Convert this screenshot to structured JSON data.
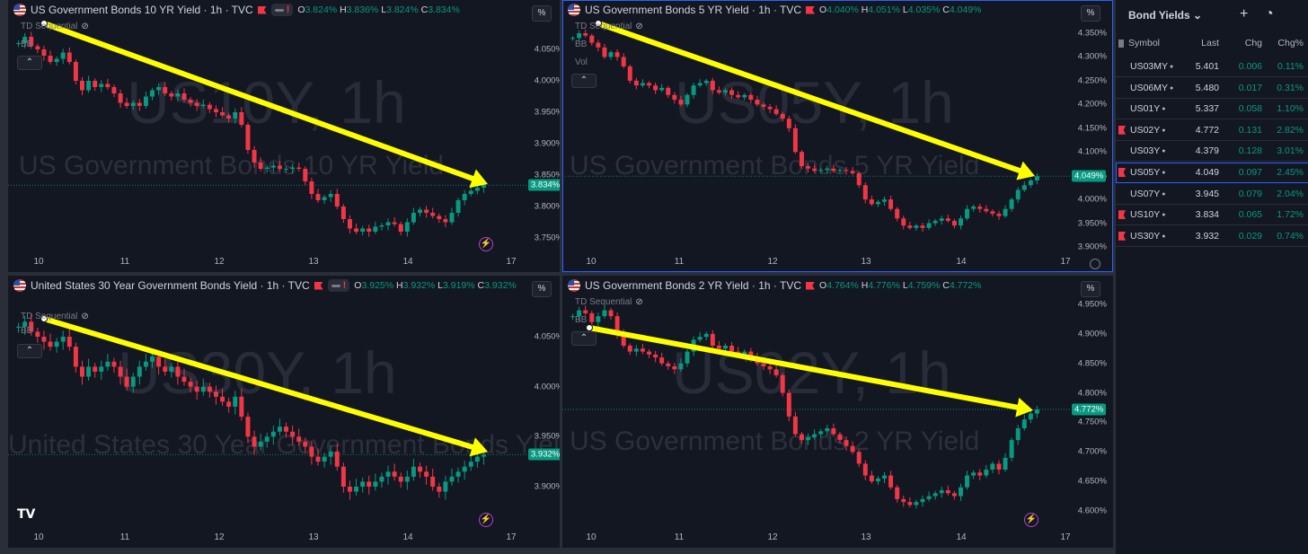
{
  "panes": [
    {
      "id": "p10",
      "title": "US Government Bonds 10 YR Yield · 1h · TVC",
      "has_pill": true,
      "ohlc": {
        "o": "3.824%",
        "h": "3.836%",
        "l": "3.824%",
        "c": "3.834%"
      },
      "indicators": [
        "TD Sequential",
        "BB"
      ],
      "wm_big": "US10Y, 1h",
      "wm_small": "US Government Bonds 10 YR Yield",
      "y_ticks": [
        "4.050%",
        "4.000%",
        "3.950%",
        "3.900%",
        "3.850%",
        "3.800%",
        "3.750%"
      ],
      "y_values": [
        4.05,
        4.0,
        3.95,
        3.9,
        3.85,
        3.8,
        3.75
      ],
      "last_value": "3.834%",
      "last": 3.834,
      "x_ticks": [
        "10",
        "11",
        "12",
        "13",
        "14",
        "17"
      ],
      "series": [
        4.06,
        4.07,
        4.055,
        4.05,
        4.04,
        4.03,
        4.035,
        4.045,
        4.03,
        4.0,
        3.985,
        4.0,
        3.99,
        3.995,
        3.99,
        3.98,
        3.965,
        3.96,
        3.965,
        3.96,
        3.975,
        3.985,
        3.99,
        3.98,
        3.975,
        3.98,
        3.97,
        3.965,
        3.96,
        3.962,
        3.955,
        3.95,
        3.945,
        3.94,
        3.95,
        3.93,
        3.89,
        3.87,
        3.86,
        3.862,
        3.865,
        3.86,
        3.86,
        3.862,
        3.86,
        3.84,
        3.82,
        3.81,
        3.815,
        3.82,
        3.8,
        3.78,
        3.765,
        3.76,
        3.765,
        3.76,
        3.768,
        3.77,
        3.775,
        3.772,
        3.76,
        3.775,
        3.79,
        3.795,
        3.79,
        3.785,
        3.78,
        3.775,
        3.79,
        3.81,
        3.82,
        3.825,
        3.83,
        3.834
      ]
    },
    {
      "id": "p05",
      "title": "US Government Bonds 5 YR Yield · 1h · TVC",
      "has_pill": false,
      "ohlc": {
        "o": "4.040%",
        "h": "4.051%",
        "l": "4.035%",
        "c": "4.049%"
      },
      "indicators": [
        "TD Sequential",
        "BB",
        "Vol"
      ],
      "wm_big": "US05Y, 1h",
      "wm_small": "US Government Bonds 5 YR Yield",
      "y_ticks": [
        "4.350%",
        "4.300%",
        "4.250%",
        "4.200%",
        "4.150%",
        "4.100%",
        "4.050%",
        "4.000%",
        "3.950%",
        "3.900%"
      ],
      "y_values": [
        4.35,
        4.3,
        4.25,
        4.2,
        4.15,
        4.1,
        4.05,
        4.0,
        3.95,
        3.9
      ],
      "last_value": "4.049%",
      "last": 4.049,
      "x_ticks": [
        "10",
        "11",
        "12",
        "13",
        "14",
        "17"
      ],
      "series": [
        4.34,
        4.35,
        4.345,
        4.33,
        4.32,
        4.3,
        4.31,
        4.3,
        4.28,
        4.25,
        4.24,
        4.245,
        4.24,
        4.23,
        4.235,
        4.22,
        4.21,
        4.2,
        4.22,
        4.24,
        4.245,
        4.25,
        4.23,
        4.225,
        4.23,
        4.22,
        4.215,
        4.22,
        4.21,
        4.2,
        4.195,
        4.19,
        4.18,
        4.17,
        4.15,
        4.1,
        4.07,
        4.065,
        4.06,
        4.062,
        4.065,
        4.06,
        4.062,
        4.06,
        4.055,
        4.03,
        4.0,
        3.99,
        3.995,
        4.0,
        3.98,
        3.96,
        3.945,
        3.94,
        3.945,
        3.94,
        3.95,
        3.955,
        3.96,
        3.955,
        3.945,
        3.96,
        3.98,
        3.985,
        3.98,
        3.975,
        3.97,
        3.965,
        3.98,
        4.0,
        4.02,
        4.03,
        4.04,
        4.049
      ]
    },
    {
      "id": "p30",
      "title": "United States 30 Year Government Bonds Yield · 1h · TVC",
      "has_pill": true,
      "ohlc": {
        "o": "3.925%",
        "h": "3.932%",
        "l": "3.919%",
        "c": "3.932%"
      },
      "indicators": [
        "TD Sequential",
        "BB"
      ],
      "wm_big": "US30Y, 1h",
      "wm_small": "United States 30 Year Government Bonds Yield",
      "y_ticks": [
        "4.050%",
        "4.000%",
        "3.950%",
        "3.900%"
      ],
      "y_values": [
        4.05,
        4.0,
        3.95,
        3.9
      ],
      "last_value": "3.932%",
      "last": 3.932,
      "x_ticks": [
        "10",
        "11",
        "12",
        "13",
        "14",
        "17"
      ],
      "series": [
        4.06,
        4.065,
        4.055,
        4.05,
        4.045,
        4.04,
        4.045,
        4.05,
        4.04,
        4.02,
        4.01,
        4.02,
        4.015,
        4.02,
        4.025,
        4.02,
        4.01,
        4.0,
        4.01,
        4.02,
        4.025,
        4.03,
        4.02,
        4.015,
        4.02,
        4.01,
        4.005,
        4.0,
        3.995,
        4.0,
        3.995,
        3.99,
        3.985,
        3.98,
        3.99,
        3.97,
        3.95,
        3.94,
        3.945,
        3.95,
        3.955,
        3.96,
        3.955,
        3.95,
        3.945,
        3.94,
        3.93,
        3.925,
        3.93,
        3.935,
        3.92,
        3.9,
        3.895,
        3.9,
        3.905,
        3.9,
        3.905,
        3.91,
        3.915,
        3.91,
        3.905,
        3.91,
        3.92,
        3.915,
        3.91,
        3.9,
        3.895,
        3.905,
        3.91,
        3.915,
        3.92,
        3.925,
        3.93,
        3.932
      ]
    },
    {
      "id": "p02",
      "title": "US Government Bonds 2 YR Yield · 1h · TVC",
      "has_pill": false,
      "ohlc": {
        "o": "4.764%",
        "h": "4.776%",
        "l": "4.759%",
        "c": "4.772%"
      },
      "indicators": [
        "TD Sequential",
        "BB"
      ],
      "wm_big": "US02Y, 1h",
      "wm_small": "US Government Bonds 2 YR Yield",
      "y_ticks": [
        "4.950%",
        "4.900%",
        "4.850%",
        "4.800%",
        "4.750%",
        "4.700%",
        "4.650%",
        "4.600%"
      ],
      "y_values": [
        4.95,
        4.9,
        4.85,
        4.8,
        4.75,
        4.7,
        4.65,
        4.6
      ],
      "last_value": "4.772%",
      "last": 4.772,
      "x_ticks": [
        "10",
        "11",
        "12",
        "13",
        "14",
        "17"
      ],
      "series": [
        4.93,
        4.94,
        4.935,
        4.92,
        4.93,
        4.94,
        4.93,
        4.9,
        4.88,
        4.87,
        4.875,
        4.87,
        4.865,
        4.86,
        4.85,
        4.845,
        4.84,
        4.85,
        4.87,
        4.89,
        4.895,
        4.9,
        4.88,
        4.875,
        4.88,
        4.87,
        4.865,
        4.87,
        4.86,
        4.85,
        4.845,
        4.84,
        4.83,
        4.8,
        4.76,
        4.73,
        4.72,
        4.725,
        4.73,
        4.735,
        4.74,
        4.73,
        4.72,
        4.71,
        4.7,
        4.68,
        4.66,
        4.65,
        4.655,
        4.66,
        4.64,
        4.62,
        4.615,
        4.61,
        4.615,
        4.62,
        4.625,
        4.63,
        4.635,
        4.63,
        4.625,
        4.64,
        4.66,
        4.665,
        4.66,
        4.67,
        4.68,
        4.67,
        4.69,
        4.72,
        4.74,
        4.755,
        4.765,
        4.772
      ]
    }
  ],
  "watchlist": {
    "title": "Bond Yields",
    "headers": {
      "symbol": "Symbol",
      "last": "Last",
      "chg": "Chg",
      "chgp": "Chg%"
    },
    "rows": [
      {
        "sym": "US03MY",
        "last": "5.401",
        "chg": "0.006",
        "chgp": "0.11%",
        "flag": false,
        "sel": false
      },
      {
        "sym": "US06MY",
        "last": "5.480",
        "chg": "0.017",
        "chgp": "0.31%",
        "flag": false,
        "sel": false
      },
      {
        "sym": "US01Y",
        "last": "5.337",
        "chg": "0.058",
        "chgp": "1.10%",
        "flag": false,
        "sel": false
      },
      {
        "sym": "US02Y",
        "last": "4.772",
        "chg": "0.131",
        "chgp": "2.82%",
        "flag": true,
        "sel": false
      },
      {
        "sym": "US03Y",
        "last": "4.379",
        "chg": "0.128",
        "chgp": "3.01%",
        "flag": false,
        "sel": false
      },
      {
        "sym": "US05Y",
        "last": "4.049",
        "chg": "0.097",
        "chgp": "2.45%",
        "flag": true,
        "sel": true
      },
      {
        "sym": "US07Y",
        "last": "3.945",
        "chg": "0.079",
        "chgp": "2.04%",
        "flag": false,
        "sel": false
      },
      {
        "sym": "US10Y",
        "last": "3.834",
        "chg": "0.065",
        "chgp": "1.72%",
        "flag": true,
        "sel": false
      },
      {
        "sym": "US30Y",
        "last": "3.932",
        "chg": "0.029",
        "chgp": "0.74%",
        "flag": true,
        "sel": false
      }
    ]
  },
  "ui": {
    "pct": "%",
    "collapse": "⌃",
    "bolt": "⚡",
    "ohlc_keys": {
      "o": "O",
      "h": "H",
      "l": "L",
      "c": "C"
    },
    "pill_mark": "!",
    "tv_logo": "TV"
  },
  "colors": {
    "up": "#089981",
    "down": "#f23645",
    "arrow": "#ffff00",
    "accent": "#2962ff"
  }
}
